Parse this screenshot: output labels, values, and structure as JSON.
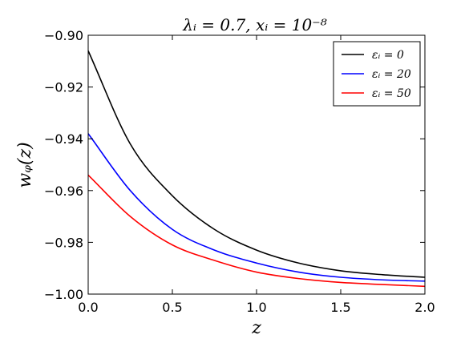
{
  "chart_data": {
    "type": "line",
    "title": "λᵢ = 0.7,      xᵢ = 10⁻⁸",
    "xlabel": "z",
    "ylabel": "wᵩ(z)",
    "xlim": [
      0.0,
      2.0
    ],
    "ylim": [
      -1.0,
      -0.9
    ],
    "xticks": [
      0.0,
      0.5,
      1.0,
      1.5,
      2.0
    ],
    "xtick_labels": [
      "0.0",
      "0.5",
      "1.0",
      "1.5",
      "2.0"
    ],
    "yticks": [
      -0.9,
      -0.92,
      -0.94,
      -0.96,
      -0.98,
      -1.0
    ],
    "ytick_labels": [
      "−0.90",
      "−0.92",
      "−0.94",
      "−0.96",
      "−0.98",
      "−1.00"
    ],
    "grid": false,
    "legend_position": "top-right",
    "x": [
      0.0,
      0.25,
      0.5,
      0.75,
      1.0,
      1.25,
      1.5,
      1.75,
      2.0
    ],
    "series": [
      {
        "name": "εᵢ = 0",
        "color": "#000000",
        "values": [
          -0.906,
          -0.942,
          -0.962,
          -0.975,
          -0.983,
          -0.988,
          -0.991,
          -0.9925,
          -0.9935
        ]
      },
      {
        "name": "εᵢ = 20",
        "color": "#0000ff",
        "values": [
          -0.938,
          -0.96,
          -0.975,
          -0.983,
          -0.988,
          -0.9915,
          -0.9935,
          -0.9945,
          -0.995
        ]
      },
      {
        "name": "εᵢ = 50",
        "color": "#ff0000",
        "values": [
          -0.954,
          -0.97,
          -0.981,
          -0.987,
          -0.9915,
          -0.994,
          -0.9955,
          -0.9963,
          -0.997
        ]
      }
    ]
  }
}
